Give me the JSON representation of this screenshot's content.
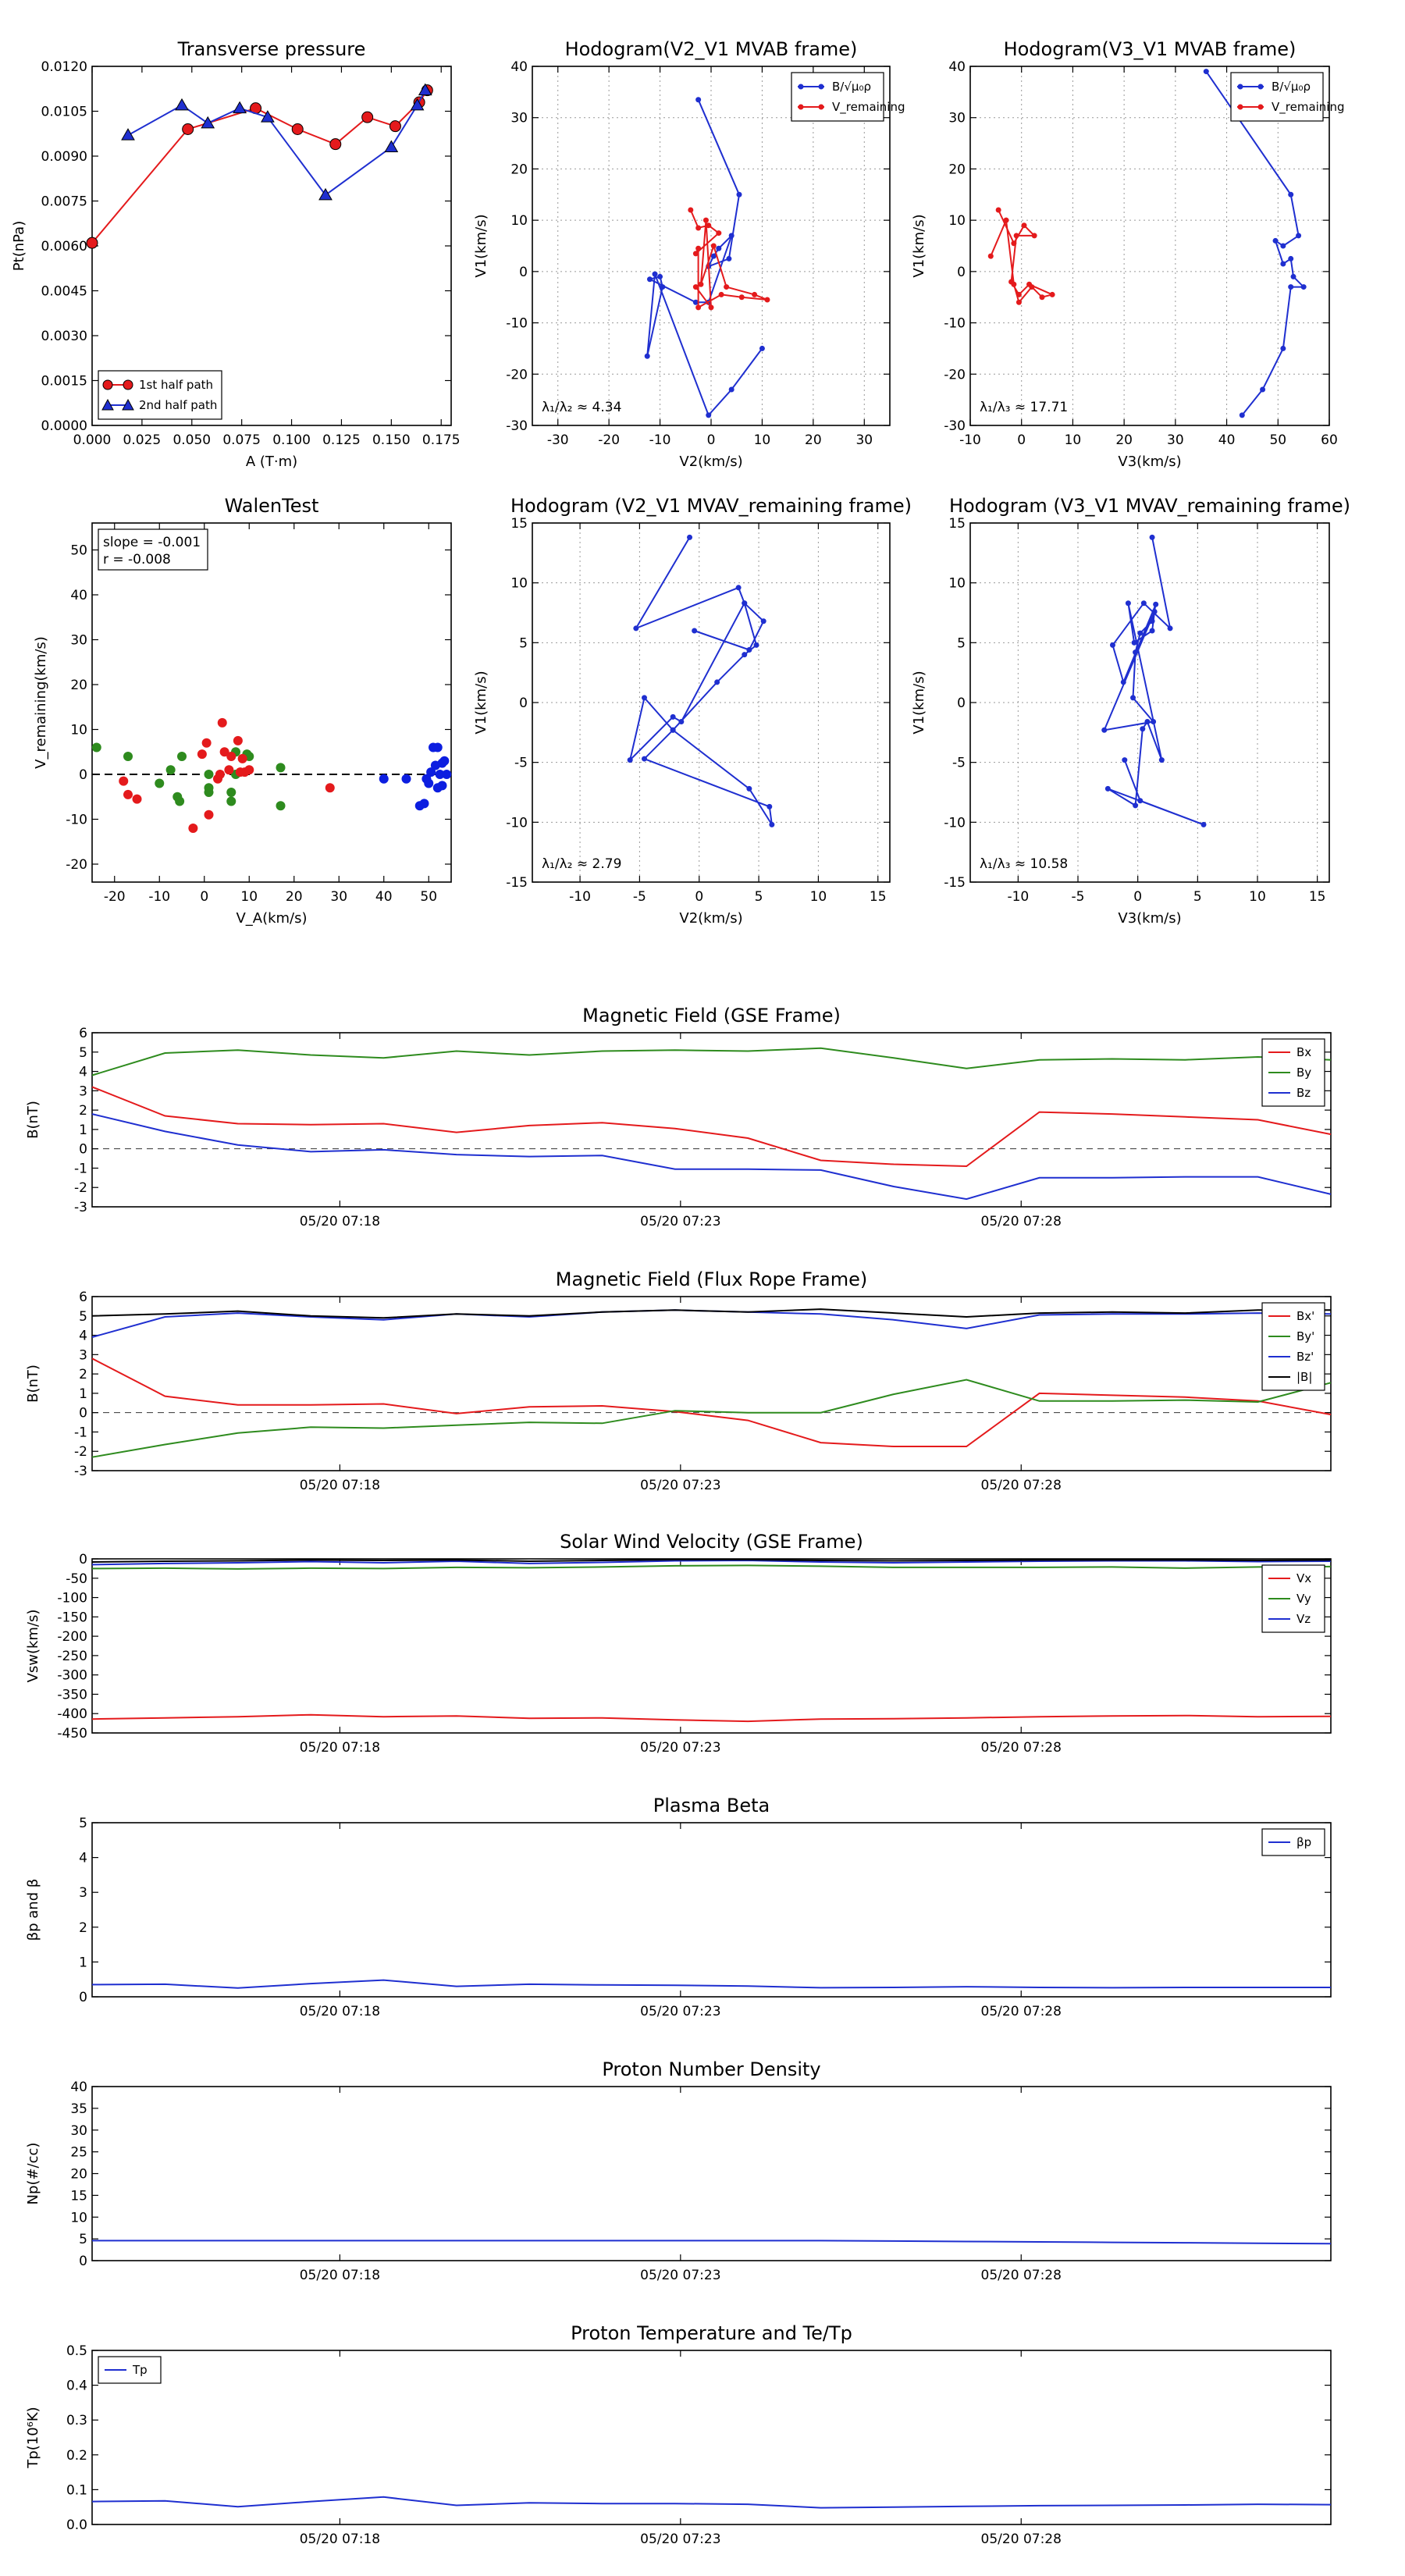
{
  "transverse_pressure": {
    "type": "line",
    "title": "Transverse pressure",
    "xlabel": "A (T·m)",
    "ylabel": "Pt(nPa)",
    "xlim": [
      0.0,
      0.18
    ],
    "ylim": [
      0.0,
      0.012
    ],
    "xticks": [
      "0.000",
      "0.025",
      "0.050",
      "0.075",
      "0.100",
      "0.125",
      "0.150",
      "0.175"
    ],
    "yticks": [
      "0.0000",
      "0.0015",
      "0.0030",
      "0.0045",
      "0.0060",
      "0.0075",
      "0.0090",
      "0.0105",
      "0.0120"
    ],
    "series": [
      {
        "name": "1st half path",
        "color": "#e41a1c",
        "marker": "circle",
        "x": [
          0.0,
          0.048,
          0.082,
          0.103,
          0.122,
          0.138,
          0.152,
          0.164,
          0.168
        ],
        "y": [
          0.0061,
          0.0099,
          0.0106,
          0.0099,
          0.0094,
          0.0103,
          0.01,
          0.0108,
          0.0112
        ]
      },
      {
        "name": "2nd half path",
        "color": "#1f2fd0",
        "marker": "triangle",
        "x": [
          0.018,
          0.045,
          0.058,
          0.074,
          0.088,
          0.117,
          0.15,
          0.163,
          0.167
        ],
        "y": [
          0.0097,
          0.0107,
          0.0101,
          0.0106,
          0.0103,
          0.0077,
          0.0093,
          0.0107,
          0.0112
        ]
      }
    ]
  },
  "hodo1": {
    "type": "line",
    "title": "Hodogram(V2_V1 MVAB frame)",
    "xlabel": "V2(km/s)",
    "ylabel": "V1(km/s)",
    "xlim": [
      -35,
      35
    ],
    "ylim": [
      -30,
      40
    ],
    "xticks": [
      "-30",
      "-20",
      "-10",
      "0",
      "10",
      "20",
      "30"
    ],
    "yticks": [
      "-30",
      "-20",
      "-10",
      "0",
      "10",
      "20",
      "30",
      "40"
    ],
    "annotation": "λ₁/λ₂ ≈ 4.34",
    "series": [
      {
        "name": "B/√μ₀ρ",
        "color": "#1f2fd0",
        "x": [
          -2.5,
          5.5,
          3.5,
          -0.5,
          0.5,
          1.5,
          4,
          -0.5,
          -3,
          -12,
          -10,
          -9.5,
          -12.5,
          -11,
          -0.5,
          4,
          10
        ],
        "y": [
          33.5,
          15,
          2.5,
          1,
          3,
          4.5,
          7,
          -6,
          -6,
          -1.5,
          -1,
          -3,
          -16.5,
          -0.5,
          -28,
          -23,
          -15
        ]
      },
      {
        "name": "V_remaining",
        "color": "#e41a1c",
        "x": [
          -4,
          -2.5,
          -0.5,
          1.5,
          -3,
          -2.5,
          -2.5,
          2,
          6,
          11,
          8.5,
          3,
          0.5,
          -2,
          -1,
          0,
          -3
        ],
        "y": [
          12,
          8.5,
          9,
          7.5,
          3.5,
          4.5,
          -7,
          -4.5,
          -5,
          -5.5,
          -4.5,
          -3,
          5,
          -2.5,
          10,
          -7,
          -3
        ]
      }
    ]
  },
  "hodo2": {
    "type": "line",
    "title": "Hodogram(V3_V1 MVAB frame)",
    "xlabel": "V3(km/s)",
    "ylabel": "V1(km/s)",
    "xlim": [
      -10,
      60
    ],
    "ylim": [
      -30,
      40
    ],
    "xticks": [
      "-10",
      "0",
      "10",
      "20",
      "30",
      "40",
      "50",
      "60"
    ],
    "yticks": [
      "-30",
      "-20",
      "-10",
      "0",
      "10",
      "20",
      "30",
      "40"
    ],
    "annotation": "λ₁/λ₃ ≈ 17.71",
    "series": [
      {
        "name": "B/√μ₀ρ",
        "color": "#1f2fd0",
        "x": [
          36,
          52.5,
          54,
          51,
          49.5,
          51,
          52.5,
          53,
          55,
          52.5,
          51,
          47,
          43
        ],
        "y": [
          39,
          15,
          7,
          5,
          6,
          1.5,
          2.5,
          -1,
          -3,
          -3,
          -15,
          -23,
          -28
        ]
      },
      {
        "name": "V_remaining",
        "color": "#e41a1c",
        "x": [
          -4.5,
          -1.5,
          0.5,
          2.5,
          -1,
          -2,
          -0.5,
          1.5,
          6,
          4,
          2,
          -0.5,
          -1.5,
          -3,
          -6
        ],
        "y": [
          12,
          5.5,
          9,
          7,
          7,
          -2,
          -4.5,
          -2.5,
          -4.5,
          -5,
          -3,
          -6,
          -2.5,
          10,
          3
        ]
      }
    ]
  },
  "walen": {
    "type": "scatter",
    "title": "WalenTest",
    "xlabel": "V_A(km/s)",
    "ylabel": "V_remaining(km/s)",
    "xlim": [
      -25,
      55
    ],
    "ylim": [
      -24,
      56
    ],
    "xticks": [
      "-20",
      "-10",
      "0",
      "10",
      "20",
      "30",
      "40",
      "50"
    ],
    "yticks": [
      "-20",
      "-10",
      "0",
      "10",
      "20",
      "30",
      "40",
      "50"
    ],
    "annotation_lines": [
      "slope = -0.001",
      "r = -0.008"
    ],
    "groups": [
      {
        "color": "#2e8b1e",
        "x": [
          -24,
          -17,
          -10,
          -7.5,
          -6,
          -5.5,
          -5,
          1,
          1,
          1,
          6,
          6,
          7,
          7,
          9.5,
          10,
          17,
          17
        ],
        "y": [
          6,
          4,
          -2,
          1,
          -5,
          -6,
          4,
          0,
          -3,
          -4,
          -4,
          -6,
          0,
          5,
          4.5,
          4,
          1.5,
          -7
        ]
      },
      {
        "color": "#e41a1c",
        "x": [
          -18,
          -17,
          -15,
          -2.5,
          -0.5,
          0.5,
          1,
          3,
          3.5,
          4,
          4.5,
          5.5,
          6,
          7.5,
          8,
          8.5,
          9,
          10,
          28
        ],
        "y": [
          -1.5,
          -4.5,
          -5.5,
          -12,
          4.5,
          7,
          -9,
          -1,
          0,
          11.5,
          5,
          1,
          4,
          7.5,
          0.5,
          3.5,
          0.5,
          1,
          -3
        ]
      },
      {
        "color": "#0c1ee0",
        "x": [
          40,
          45,
          48,
          49,
          49.5,
          50,
          50.5,
          51,
          51.5,
          52,
          52,
          52.5,
          53,
          53,
          53.5,
          54
        ],
        "y": [
          -1,
          -1,
          -7,
          -6.5,
          -1,
          -2,
          0.5,
          6,
          2,
          -3,
          6,
          0,
          2.5,
          -2.5,
          3,
          0
        ]
      }
    ]
  },
  "hodo3": {
    "type": "line",
    "title": "Hodogram (V2_V1 MVAV_remaining frame)",
    "xlabel": "V2(km/s)",
    "ylabel": "V1(km/s)",
    "xlim": [
      -14,
      16
    ],
    "ylim": [
      -15,
      15
    ],
    "xticks": [
      "-10",
      "-5",
      "0",
      "5",
      "10",
      "15"
    ],
    "yticks": [
      "-15",
      "-10",
      "-5",
      "0",
      "5",
      "10",
      "15"
    ],
    "annotation": "λ₁/λ₂ ≈ 2.79",
    "series": [
      {
        "name": "",
        "color": "#1f2fd0",
        "x": [
          -0.8,
          -5.3,
          3.3,
          3.8,
          -1.5,
          -2.2,
          -5.8,
          -4.6,
          -2.2,
          4.2,
          6.1,
          5.9,
          -4.6,
          -2.2,
          1.5,
          3.8,
          4.8,
          3.8,
          5.4,
          4.2,
          -0.4
        ],
        "y": [
          13.8,
          6.2,
          9.6,
          8.3,
          -1.6,
          -1.2,
          -4.8,
          0.4,
          -2.3,
          -7.2,
          -10.2,
          -8.7,
          -4.7,
          -2.3,
          1.7,
          4.0,
          4.8,
          8.3,
          6.8,
          4.4,
          6.0
        ]
      }
    ]
  },
  "hodo4": {
    "type": "line",
    "title": "Hodogram (V3_V1 MVAV_remaining frame)",
    "xlabel": "V3(km/s)",
    "ylabel": "V1(km/s)",
    "xlim": [
      -14,
      16
    ],
    "ylim": [
      -15,
      15
    ],
    "xticks": [
      "-10",
      "-5",
      "0",
      "5",
      "10",
      "15"
    ],
    "yticks": [
      "-15",
      "-10",
      "-5",
      "0",
      "5",
      "10",
      "15"
    ],
    "annotation": "λ₁/λ₃ ≈ 10.58",
    "series": [
      {
        "name": "",
        "color": "#1f2fd0",
        "x": [
          1.2,
          2.7,
          0.5,
          -2.1,
          -1.2,
          1.5,
          1.2,
          0.2,
          -0.2,
          -0.4,
          1.3,
          -2.8,
          1.4,
          1.2,
          -0.3,
          -0.8,
          2.0,
          0.8,
          0.4,
          -0.2,
          -2.5,
          5.5,
          0.2,
          -1.1
        ],
        "y": [
          13.8,
          6.2,
          8.3,
          4.8,
          1.7,
          8.2,
          6.8,
          5.8,
          4.2,
          0.4,
          -1.6,
          -2.3,
          7.6,
          6.0,
          5.0,
          8.3,
          -4.8,
          -1.6,
          -2.2,
          -8.6,
          -7.2,
          -10.2,
          -8.2,
          -4.8
        ]
      }
    ]
  },
  "mag_gse": {
    "type": "line",
    "title": "Magnetic Field (GSE Frame)",
    "ylabel": "B(nT)",
    "ylim": [
      -3,
      6
    ],
    "yticks": [
      "-3",
      "-2",
      "-1",
      "0",
      "1",
      "2",
      "3",
      "4",
      "5",
      "6"
    ],
    "xticks": [
      "05/20 07:18",
      "05/20 07:23",
      "05/20 07:28"
    ],
    "xtick_fracs": [
      0.2,
      0.475,
      0.75
    ],
    "zero_line": true,
    "series": [
      {
        "name": "Bx",
        "color": "#e41a1c",
        "y": [
          3.2,
          1.7,
          1.3,
          1.25,
          1.3,
          0.85,
          1.2,
          1.35,
          1.05,
          0.55,
          -0.6,
          -0.8,
          -0.9,
          1.9,
          1.8,
          1.65,
          1.5,
          0.75
        ]
      },
      {
        "name": "By",
        "color": "#2e8b1e",
        "y": [
          3.8,
          4.95,
          5.1,
          4.85,
          4.7,
          5.05,
          4.85,
          5.05,
          5.1,
          5.05,
          5.2,
          4.7,
          4.15,
          4.6,
          4.65,
          4.6,
          4.75,
          4.6
        ]
      },
      {
        "name": "Bz",
        "color": "#1f2fd0",
        "y": [
          1.8,
          0.9,
          0.2,
          -0.15,
          -0.05,
          -0.3,
          -0.4,
          -0.35,
          -1.05,
          -1.05,
          -1.1,
          -1.95,
          -2.6,
          -1.5,
          -1.5,
          -1.45,
          -1.45,
          -2.35
        ]
      }
    ]
  },
  "mag_fr": {
    "type": "line",
    "title": "Magnetic Field (Flux Rope Frame)",
    "ylabel": "B(nT)",
    "ylim": [
      -3,
      6
    ],
    "yticks": [
      "-3",
      "-2",
      "-1",
      "0",
      "1",
      "2",
      "3",
      "4",
      "5",
      "6"
    ],
    "xticks": [
      "05/20 07:18",
      "05/20 07:23",
      "05/20 07:28"
    ],
    "xtick_fracs": [
      0.2,
      0.475,
      0.75
    ],
    "zero_line": true,
    "series": [
      {
        "name": "Bx'",
        "color": "#e41a1c",
        "y": [
          2.8,
          0.85,
          0.4,
          0.4,
          0.45,
          -0.05,
          0.3,
          0.35,
          0.05,
          -0.4,
          -1.55,
          -1.75,
          -1.75,
          1.0,
          0.9,
          0.8,
          0.6,
          -0.1
        ]
      },
      {
        "name": "By'",
        "color": "#2e8b1e",
        "y": [
          -2.3,
          -1.65,
          -1.05,
          -0.75,
          -0.8,
          -0.65,
          -0.5,
          -0.55,
          0.1,
          0.0,
          0.0,
          0.95,
          1.7,
          0.6,
          0.6,
          0.65,
          0.55,
          1.55
        ]
      },
      {
        "name": "Bz'",
        "color": "#1f2fd0",
        "y": [
          3.9,
          4.95,
          5.15,
          4.95,
          4.8,
          5.1,
          4.95,
          5.2,
          5.3,
          5.2,
          5.1,
          4.8,
          4.35,
          5.05,
          5.1,
          5.1,
          5.15,
          5.1
        ]
      },
      {
        "name": "|B|",
        "color": "#000000",
        "y": [
          5.0,
          5.1,
          5.25,
          5.0,
          4.9,
          5.1,
          5.0,
          5.2,
          5.3,
          5.2,
          5.35,
          5.15,
          4.95,
          5.15,
          5.2,
          5.15,
          5.3,
          5.3
        ]
      }
    ]
  },
  "vsw": {
    "type": "line",
    "title": "Solar Wind Velocity (GSE Frame)",
    "ylabel": "Vsw(km/s)",
    "ylim": [
      -450,
      0
    ],
    "yticks": [
      "-450",
      "-400",
      "-350",
      "-300",
      "-250",
      "-200",
      "-150",
      "-100",
      "-50",
      "0"
    ],
    "xticks": [
      "05/20 07:18",
      "05/20 07:23",
      "05/20 07:28"
    ],
    "xtick_fracs": [
      0.2,
      0.475,
      0.75
    ],
    "zero_line": false,
    "series": [
      {
        "name": "Vx",
        "color": "#e41a1c",
        "y": [
          -414,
          -411,
          -408,
          -403,
          -408,
          -406,
          -412,
          -411,
          -416,
          -420,
          -414,
          -413,
          -411,
          -408,
          -406,
          -405,
          -408,
          -407
        ]
      },
      {
        "name": "Vy",
        "color": "#2e8b1e",
        "y": [
          -25,
          -24,
          -26,
          -24,
          -25,
          -22,
          -23,
          -21,
          -18,
          -17,
          -19,
          -22,
          -22,
          -22,
          -21,
          -24,
          -21,
          -20
        ]
      },
      {
        "name": "Vz",
        "color": "#1f2fd0",
        "y": [
          -15,
          -12,
          -10,
          -7,
          -10,
          -6,
          -12,
          -9,
          -5,
          -4,
          -8,
          -10,
          -8,
          -6,
          -5,
          -5,
          -7,
          -6
        ]
      },
      {
        "name": "",
        "color": "#000000",
        "y": [
          -8,
          -6,
          -5,
          -3,
          -4,
          -3,
          -6,
          -4,
          -2,
          -2,
          -4,
          -5,
          -4,
          -3,
          -3,
          -3,
          -4,
          -3
        ]
      }
    ]
  },
  "beta": {
    "type": "line",
    "title": "Plasma Beta",
    "ylabel": "βp and β",
    "ylim": [
      0,
      5
    ],
    "yticks": [
      "0",
      "1",
      "2",
      "3",
      "4",
      "5"
    ],
    "xticks": [
      "05/20 07:18",
      "05/20 07:23",
      "05/20 07:28"
    ],
    "xtick_fracs": [
      0.2,
      0.475,
      0.75
    ],
    "zero_line": false,
    "series": [
      {
        "name": "βp",
        "color": "#1f2fd0",
        "y": [
          0.35,
          0.36,
          0.25,
          0.38,
          0.48,
          0.3,
          0.36,
          0.34,
          0.33,
          0.31,
          0.26,
          0.27,
          0.29,
          0.27,
          0.26,
          0.27,
          0.27,
          0.27
        ]
      }
    ]
  },
  "density": {
    "type": "line",
    "title": "Proton Number Density",
    "ylabel": "Np(#/cc)",
    "ylim": [
      0,
      40
    ],
    "yticks": [
      "0",
      "5",
      "10",
      "15",
      "20",
      "25",
      "30",
      "35",
      "40"
    ],
    "xticks": [
      "05/20 07:18",
      "05/20 07:23",
      "05/20 07:28"
    ],
    "xtick_fracs": [
      0.2,
      0.475,
      0.75
    ],
    "zero_line": false,
    "series": [
      {
        "name": "",
        "color": "#1f2fd0",
        "y": [
          4.6,
          4.6,
          4.6,
          4.6,
          4.6,
          4.6,
          4.6,
          4.6,
          4.6,
          4.6,
          4.6,
          4.5,
          4.4,
          4.3,
          4.2,
          4.1,
          4.0,
          3.9
        ]
      }
    ]
  },
  "temp": {
    "type": "line",
    "title": "Proton Temperature and Te/Tp",
    "ylabel": "Tp(10⁶K)",
    "ylim": [
      0,
      0.5
    ],
    "yticks": [
      "0.0",
      "0.1",
      "0.2",
      "0.3",
      "0.4",
      "0.5"
    ],
    "xticks": [
      "05/20 07:18",
      "05/20 07:23",
      "05/20 07:28"
    ],
    "xtick_fracs": [
      0.2,
      0.475,
      0.75
    ],
    "zero_line": false,
    "series": [
      {
        "name": "Tp",
        "color": "#1f2fd0",
        "y": [
          0.066,
          0.068,
          0.051,
          0.066,
          0.079,
          0.055,
          0.062,
          0.06,
          0.06,
          0.058,
          0.048,
          0.05,
          0.052,
          0.054,
          0.055,
          0.056,
          0.058,
          0.057
        ]
      }
    ]
  }
}
